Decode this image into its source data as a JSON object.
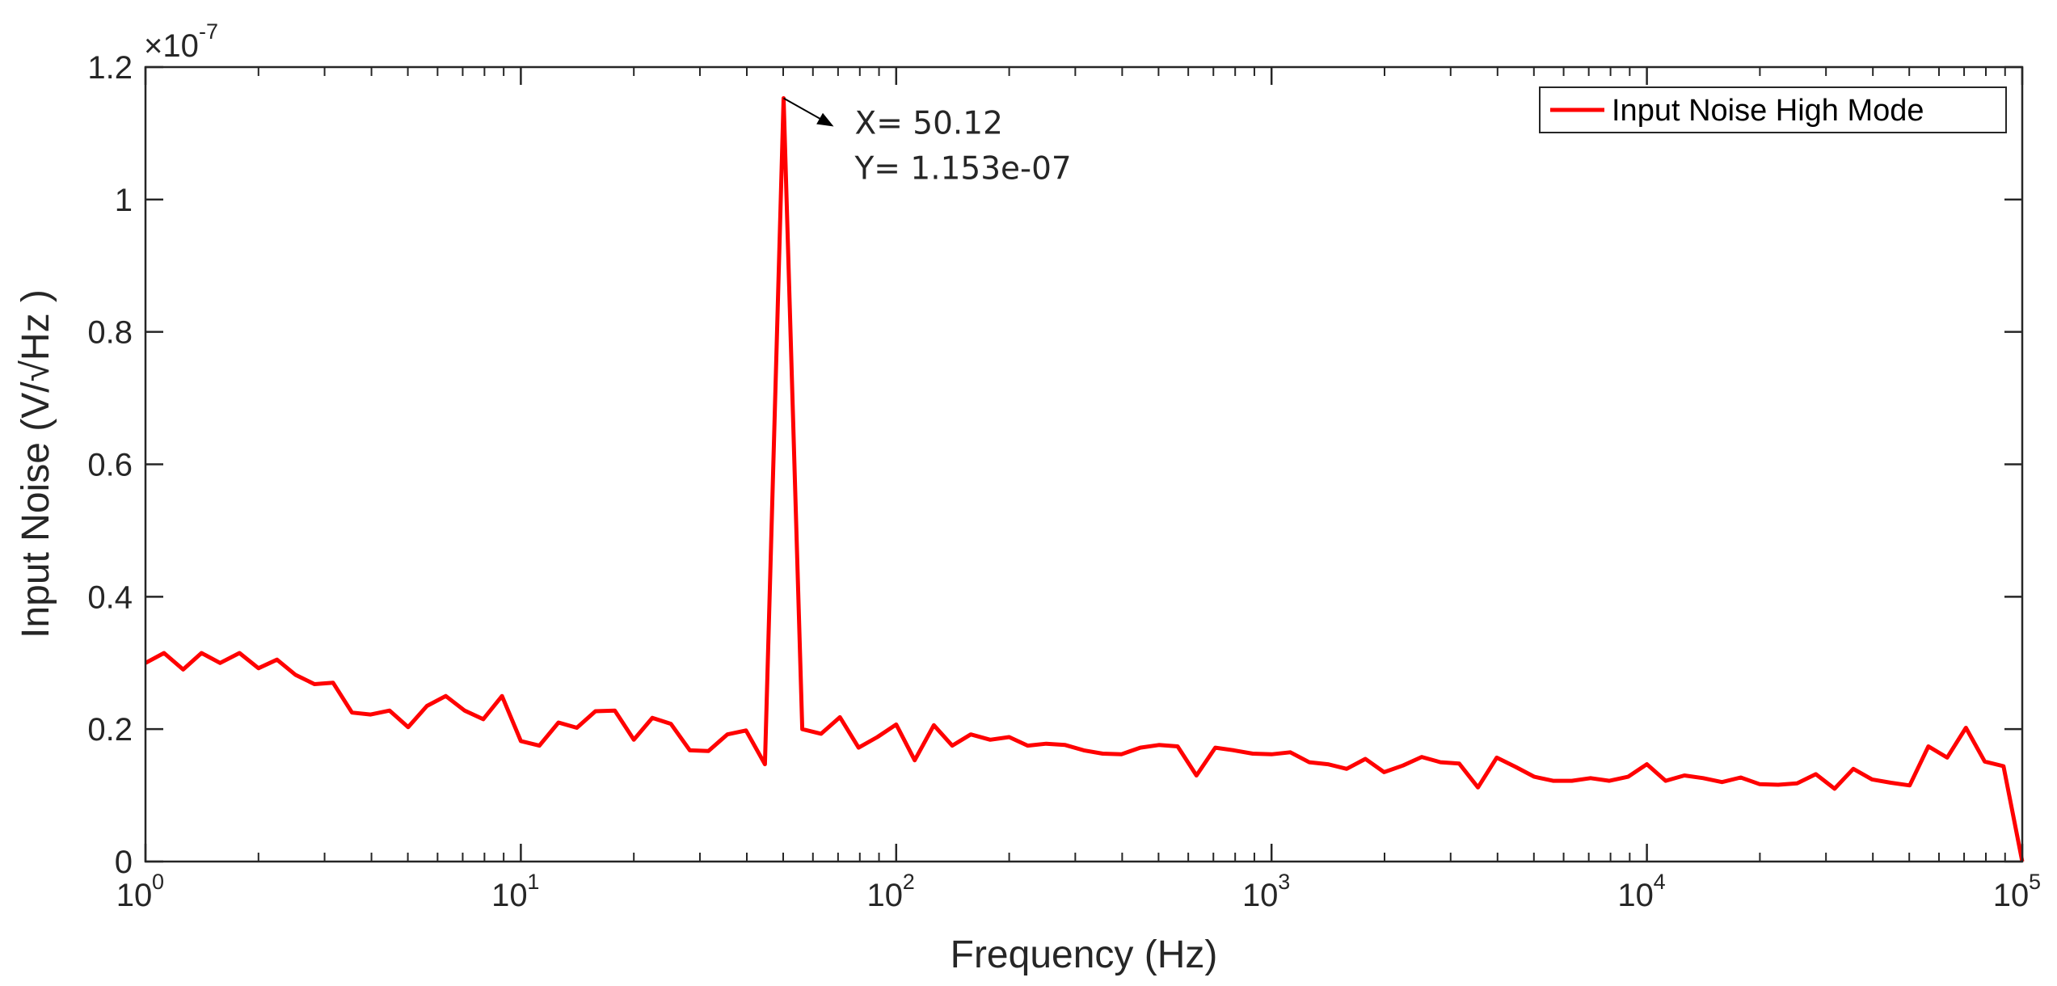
{
  "chart_data": {
    "type": "line",
    "xlabel": "Frequency (Hz)",
    "ylabel": "Input Noise (V/√Hz )",
    "xscale": "log",
    "xlim": [
      1,
      100000
    ],
    "ylim": [
      0,
      1.2e-07
    ],
    "y_multiplier_label": "×10",
    "y_multiplier_exponent": "-7",
    "x_ticks": [
      {
        "base": "10",
        "exp": "0",
        "value": 1
      },
      {
        "base": "10",
        "exp": "1",
        "value": 10
      },
      {
        "base": "10",
        "exp": "2",
        "value": 100
      },
      {
        "base": "10",
        "exp": "3",
        "value": 1000
      },
      {
        "base": "10",
        "exp": "4",
        "value": 10000
      },
      {
        "base": "10",
        "exp": "5",
        "value": 100000
      }
    ],
    "y_ticks": [
      {
        "label": "0",
        "value": 0
      },
      {
        "label": "0.2",
        "value": 2e-08
      },
      {
        "label": "0.4",
        "value": 4e-08
      },
      {
        "label": "0.6",
        "value": 6e-08
      },
      {
        "label": "0.8",
        "value": 8e-08
      },
      {
        "label": "1",
        "value": 1e-07
      },
      {
        "label": "1.2",
        "value": 1.2e-07
      }
    ],
    "grid": false,
    "legend_position": "top-right",
    "series": [
      {
        "name": "Input Noise High Mode",
        "color": "#ff0000",
        "x": [
          1,
          1.12,
          1.26,
          1.41,
          1.58,
          1.78,
          2,
          2.24,
          2.51,
          2.82,
          3.16,
          3.55,
          3.98,
          4.47,
          5.01,
          5.62,
          6.31,
          7.08,
          7.94,
          8.91,
          10,
          11.2,
          12.6,
          14.1,
          15.8,
          17.8,
          20,
          22.4,
          25.1,
          28.2,
          31.6,
          35.5,
          39.8,
          44.7,
          50.12,
          56.2,
          63.1,
          70.8,
          79.4,
          89.1,
          100,
          112,
          126,
          141,
          158,
          178,
          200,
          224,
          251,
          282,
          316,
          355,
          398,
          447,
          501,
          562,
          631,
          708,
          794,
          891,
          1000,
          1122,
          1259,
          1413,
          1585,
          1778,
          1995,
          2239,
          2512,
          2818,
          3162,
          3548,
          3981,
          4467,
          5012,
          5623,
          6310,
          7079,
          7943,
          8913,
          10000,
          11220,
          12589,
          14125,
          15849,
          17783,
          19953,
          22387,
          25119,
          28184,
          31623,
          35481,
          39811,
          44668,
          50119,
          56234,
          63096,
          70795,
          79433,
          89125,
          100000
        ],
        "y": [
          3e-08,
          3.15e-08,
          2.9e-08,
          3.15e-08,
          3e-08,
          3.15e-08,
          2.92e-08,
          3.05e-08,
          2.82e-08,
          2.68e-08,
          2.7e-08,
          2.25e-08,
          2.22e-08,
          2.28e-08,
          2.03e-08,
          2.35e-08,
          2.5e-08,
          2.28e-08,
          2.15e-08,
          2.5e-08,
          1.82e-08,
          1.75e-08,
          2.1e-08,
          2.02e-08,
          2.27e-08,
          2.28e-08,
          1.84e-08,
          2.17e-08,
          2.08e-08,
          1.68e-08,
          1.67e-08,
          1.92e-08,
          1.98e-08,
          1.47e-08,
          1.153e-07,
          2e-08,
          1.93e-08,
          2.18e-08,
          1.72e-08,
          1.88e-08,
          2.07e-08,
          1.53e-08,
          2.06e-08,
          1.75e-08,
          1.92e-08,
          1.84e-08,
          1.88e-08,
          1.75e-08,
          1.78e-08,
          1.76e-08,
          1.68e-08,
          1.63e-08,
          1.62e-08,
          1.72e-08,
          1.76e-08,
          1.74e-08,
          1.3e-08,
          1.72e-08,
          1.68e-08,
          1.63e-08,
          1.62e-08,
          1.65e-08,
          1.5e-08,
          1.47e-08,
          1.4e-08,
          1.55e-08,
          1.35e-08,
          1.45e-08,
          1.58e-08,
          1.5e-08,
          1.48e-08,
          1.12e-08,
          1.57e-08,
          1.43e-08,
          1.28e-08,
          1.22e-08,
          1.22e-08,
          1.26e-08,
          1.22e-08,
          1.28e-08,
          1.47e-08,
          1.22e-08,
          1.3e-08,
          1.26e-08,
          1.2e-08,
          1.27e-08,
          1.17e-08,
          1.16e-08,
          1.18e-08,
          1.32e-08,
          1.1e-08,
          1.4e-08,
          1.24e-08,
          1.19e-08,
          1.15e-08,
          1.74e-08,
          1.57e-08,
          2.02e-08,
          1.51e-08,
          1.44e-08,
          0.0
        ]
      }
    ],
    "datatip": {
      "x_text": "X= 50.12",
      "y_text": "Y= 1.153e-07",
      "x": 50.12,
      "y": 1.153e-07
    }
  }
}
